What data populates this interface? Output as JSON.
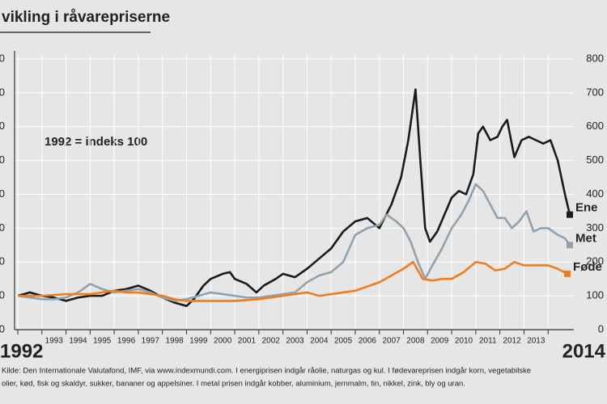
{
  "chart_data": {
    "type": "line",
    "title": "vikling i råvarepriserne",
    "annotation": "1992 = indeks 100",
    "source": [
      "Kilde: Den Internationale Valutafond, IMF, via www.indexmundi.com. I energiprisen indgår råolie, naturgas og kul. I fødevareprisen indgår korn, vegetabilske",
      "olier, kød, fisk og skaldyr, sukker, bananer og appelsiner. I metal prisen indgår kobber, aluminium, jernmalm, tin, nikkel, zink, bly og uran."
    ],
    "xlim": [
      1992,
      2015
    ],
    "xticks": [
      1992,
      1993,
      1994,
      1995,
      1996,
      1997,
      1998,
      1999,
      2000,
      2001,
      2002,
      2003,
      2004,
      2005,
      2006,
      2007,
      2008,
      2009,
      2010,
      2011,
      2012,
      2013,
      2014
    ],
    "ylim": [
      0,
      800
    ],
    "yticks": [
      0,
      100,
      200,
      300,
      400,
      500,
      600,
      700,
      800
    ],
    "grid": true,
    "series": [
      {
        "name": "Ene",
        "color": "#1a1a1a",
        "x": [
          1992,
          1992.5,
          1993,
          1993.5,
          1994,
          1994.5,
          1995,
          1995.5,
          1996,
          1996.5,
          1997,
          1997.5,
          1998,
          1998.5,
          1999,
          1999.3,
          1999.7,
          2000,
          2000.5,
          2000.8,
          2001,
          2001.5,
          2001.9,
          2002.2,
          2002.7,
          2003,
          2003.5,
          2004,
          2004.5,
          2005,
          2005.5,
          2006,
          2006.5,
          2007,
          2007.5,
          2007.9,
          2008.2,
          2008.5,
          2008.7,
          2008.9,
          2009.1,
          2009.4,
          2009.7,
          2010,
          2010.3,
          2010.6,
          2010.9,
          2011.1,
          2011.3,
          2011.6,
          2011.9,
          2012.1,
          2012.3,
          2012.6,
          2012.9,
          2013.2,
          2013.5,
          2013.8,
          2014.1,
          2014.4,
          2014.7,
          2014.9
        ],
        "values": [
          100,
          110,
          100,
          95,
          85,
          95,
          100,
          100,
          115,
          120,
          130,
          115,
          95,
          80,
          70,
          90,
          130,
          150,
          165,
          170,
          150,
          135,
          110,
          130,
          150,
          165,
          155,
          180,
          210,
          240,
          290,
          320,
          330,
          300,
          370,
          450,
          560,
          710,
          500,
          300,
          260,
          290,
          340,
          390,
          410,
          400,
          460,
          580,
          600,
          560,
          570,
          600,
          620,
          510,
          560,
          570,
          560,
          550,
          560,
          500,
          400,
          340
        ]
      },
      {
        "name": "Met",
        "color": "#8fa2ae",
        "x": [
          1992,
          1993,
          1993.5,
          1994,
          1994.5,
          1995,
          1995.5,
          1996,
          1996.5,
          1997,
          1997.5,
          1998,
          1998.5,
          1999,
          1999.5,
          2000,
          2000.5,
          2001,
          2001.5,
          2002,
          2002.5,
          2003,
          2003.5,
          2004,
          2004.5,
          2005,
          2005.5,
          2006,
          2006.5,
          2007,
          2007.3,
          2007.7,
          2008,
          2008.3,
          2008.6,
          2008.9,
          2009.2,
          2009.6,
          2010,
          2010.4,
          2010.7,
          2011,
          2011.3,
          2011.6,
          2011.9,
          2012.2,
          2012.5,
          2012.8,
          2013.1,
          2013.4,
          2013.7,
          2014,
          2014.4,
          2014.7,
          2014.9
        ],
        "values": [
          100,
          90,
          90,
          95,
          110,
          135,
          120,
          110,
          115,
          120,
          110,
          95,
          85,
          90,
          100,
          110,
          105,
          100,
          95,
          95,
          100,
          105,
          110,
          140,
          160,
          170,
          200,
          280,
          300,
          310,
          340,
          320,
          300,
          260,
          200,
          150,
          190,
          240,
          300,
          340,
          380,
          430,
          410,
          370,
          330,
          330,
          300,
          320,
          350,
          290,
          300,
          300,
          280,
          270,
          250
        ]
      },
      {
        "name": "Føde",
        "color": "#f07c1e",
        "x": [
          1992,
          1993,
          1994,
          1995,
          1996,
          1996.5,
          1997,
          1998,
          1998.5,
          1999,
          2000,
          2001,
          2002,
          2003,
          2004,
          2004.5,
          2005,
          2006,
          2007,
          2007.5,
          2008,
          2008.4,
          2008.8,
          2009.2,
          2009.6,
          2010,
          2010.5,
          2011,
          2011.4,
          2011.8,
          2012.2,
          2012.6,
          2013,
          2013.5,
          2014,
          2014.4,
          2014.8
        ],
        "values": [
          100,
          100,
          105,
          105,
          115,
          110,
          110,
          100,
          90,
          85,
          85,
          85,
          90,
          100,
          110,
          100,
          105,
          115,
          140,
          160,
          180,
          200,
          150,
          145,
          150,
          150,
          170,
          200,
          195,
          175,
          180,
          200,
          190,
          190,
          190,
          180,
          165
        ]
      }
    ]
  }
}
